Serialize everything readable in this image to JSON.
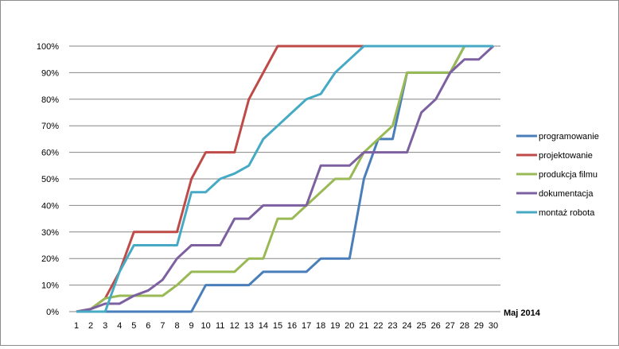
{
  "chart_data": {
    "type": "line",
    "xlabel": "Maj 2014",
    "ylabel": "",
    "ylim": [
      0,
      100
    ],
    "y_ticks": [
      0,
      10,
      20,
      30,
      40,
      50,
      60,
      70,
      80,
      90,
      100
    ],
    "y_tick_labels": [
      "0%",
      "10%",
      "20%",
      "30%",
      "40%",
      "50%",
      "60%",
      "70%",
      "80%",
      "90%",
      "100%"
    ],
    "grid": "horizontal",
    "legend_position": "right",
    "x": [
      1,
      2,
      3,
      4,
      5,
      6,
      7,
      8,
      9,
      10,
      11,
      12,
      13,
      14,
      15,
      16,
      17,
      18,
      19,
      20,
      21,
      22,
      23,
      24,
      25,
      26,
      27,
      28,
      29,
      30
    ],
    "series": [
      {
        "name": "programowanie",
        "color": "#4a7ebb",
        "values": [
          0,
          0,
          0,
          0,
          0,
          0,
          0,
          0,
          0,
          10,
          10,
          10,
          10,
          15,
          15,
          15,
          15,
          20,
          20,
          20,
          50,
          65,
          65,
          90,
          90,
          90,
          90,
          100,
          100,
          100
        ]
      },
      {
        "name": "projektowanie",
        "color": "#be4b48",
        "values": [
          0,
          1,
          5,
          15,
          30,
          30,
          30,
          30,
          50,
          60,
          60,
          60,
          80,
          90,
          100,
          100,
          100,
          100,
          100,
          100,
          100,
          100,
          100,
          100,
          100,
          100,
          100,
          100,
          100,
          100
        ]
      },
      {
        "name": "produkcja filmu",
        "color": "#98b954",
        "values": [
          0,
          1,
          5,
          6,
          6,
          6,
          6,
          10,
          15,
          15,
          15,
          15,
          20,
          20,
          35,
          35,
          40,
          45,
          50,
          50,
          60,
          65,
          70,
          90,
          90,
          90,
          90,
          100,
          100,
          100
        ]
      },
      {
        "name": "dokumentacja",
        "color": "#7d60a0",
        "values": [
          0,
          1,
          3,
          3,
          6,
          8,
          12,
          20,
          25,
          25,
          25,
          35,
          35,
          40,
          40,
          40,
          40,
          55,
          55,
          55,
          60,
          60,
          60,
          60,
          75,
          80,
          90,
          95,
          95,
          100
        ]
      },
      {
        "name": "montaż robota",
        "color": "#46aac5",
        "values": [
          0,
          0,
          0,
          15,
          25,
          25,
          25,
          25,
          45,
          45,
          50,
          52,
          55,
          65,
          70,
          75,
          80,
          82,
          90,
          95,
          100,
          100,
          100,
          100,
          100,
          100,
          100,
          100,
          100,
          100
        ]
      }
    ]
  }
}
